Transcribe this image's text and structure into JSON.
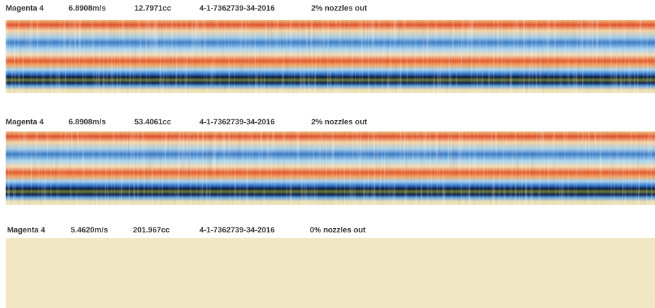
{
  "panels": [
    {
      "color": "Magenta 4",
      "speed": "6.8908m/s",
      "volume": "12.7971cc",
      "id": "4-1-7362739-34-2016",
      "nozzles": "2% nozzles out"
    },
    {
      "color": "Magenta 4",
      "speed": "6.8908m/s",
      "volume": "53.4061cc",
      "id": "4-1-7362739-34-2016",
      "nozzles": "2% nozzles out"
    },
    {
      "color": "Magenta 4",
      "speed": "5.4620m/s",
      "volume": "201.967cc",
      "id": "4-1-7362739-34-2016",
      "nozzles": "0% nozzles out"
    }
  ]
}
